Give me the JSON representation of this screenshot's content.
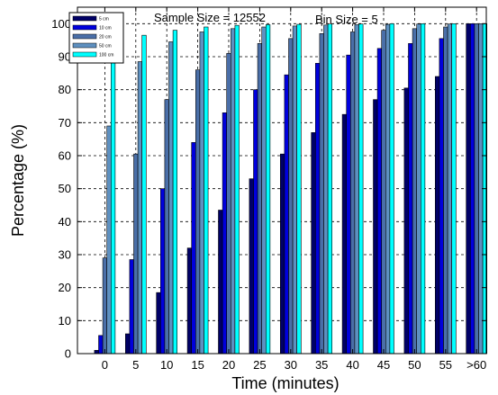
{
  "chart_data": {
    "type": "bar",
    "categories": [
      "0",
      "5",
      "10",
      "15",
      "20",
      "25",
      "30",
      "35",
      "40",
      "45",
      "50",
      "55",
      ">60"
    ],
    "series": [
      {
        "name": "5 cm",
        "color": "#000066",
        "values": [
          1,
          6,
          18.5,
          32,
          43.5,
          53,
          60.5,
          67,
          72.5,
          77,
          80.5,
          84,
          100
        ]
      },
      {
        "name": "10 cm",
        "color": "#0000dd",
        "values": [
          5.5,
          28.5,
          50,
          64,
          73,
          80,
          84.5,
          88,
          90.5,
          92.5,
          94,
          95.5,
          100
        ]
      },
      {
        "name": "20 cm",
        "color": "#4a6fa8",
        "values": [
          29,
          60.5,
          77,
          86,
          91,
          94,
          95.5,
          97,
          97.5,
          98,
          98.5,
          99,
          100
        ]
      },
      {
        "name": "50 cm",
        "color": "#5e90c0",
        "values": [
          69,
          88.5,
          94.5,
          97.5,
          98.5,
          99,
          99.3,
          99.6,
          99.7,
          99.8,
          99.9,
          99.9,
          100
        ]
      },
      {
        "name": "100 cm",
        "color": "#00ffff",
        "values": [
          90,
          96.5,
          98,
          99,
          99.5,
          99.7,
          99.8,
          99.9,
          99.9,
          100,
          100,
          100,
          100
        ]
      }
    ],
    "xlabel": "Time (minutes)",
    "ylabel": "Percentage (%)",
    "ylim": [
      0,
      105
    ],
    "yticks": [
      0,
      10,
      20,
      30,
      40,
      50,
      60,
      70,
      80,
      90,
      100
    ],
    "grid": true,
    "legend_position": "top-left",
    "annotations": [
      "Sample Size = 12552",
      "Bin Size = 5"
    ]
  }
}
